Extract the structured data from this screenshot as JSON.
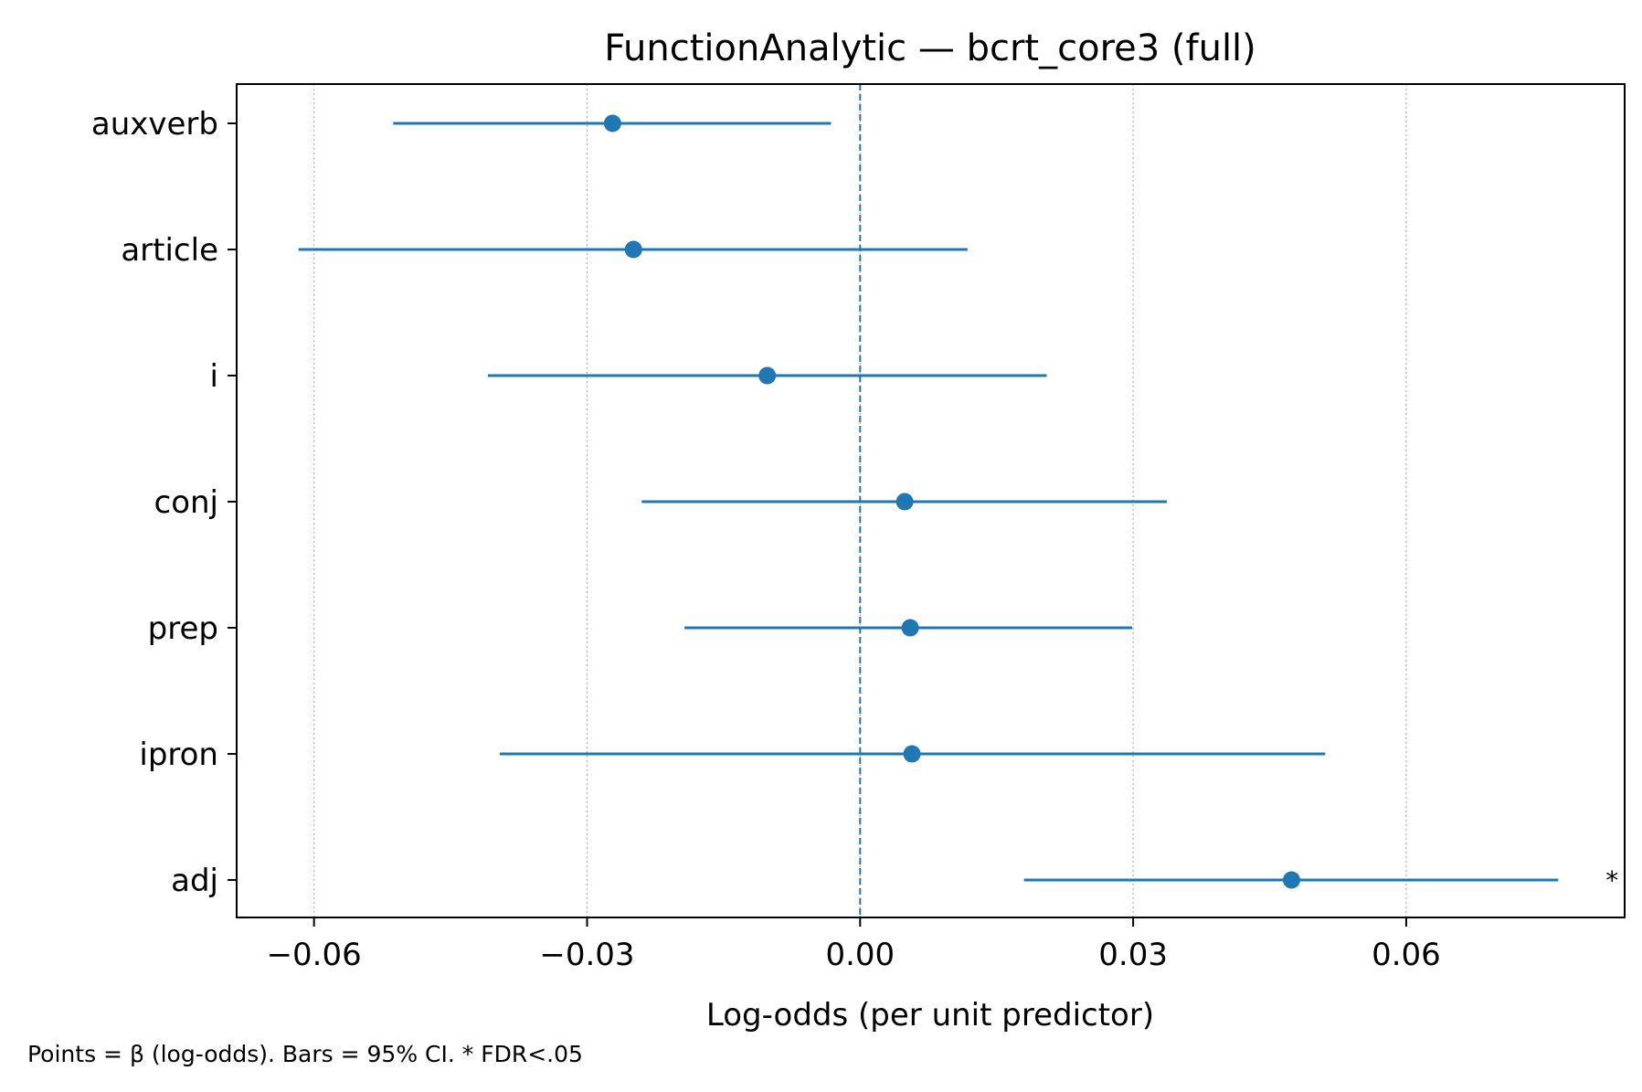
{
  "chart_data": {
    "type": "forest",
    "title": "FunctionAnalytic — bcrt_core3 (full)",
    "xlabel": "Log-odds (per unit predictor)",
    "ylabel": "",
    "caption": "Points = β (log-odds). Bars = 95% CI. * FDR<.05",
    "xlim": [
      -0.0685,
      0.084
    ],
    "xticks": [
      -0.06,
      -0.03,
      0.0,
      0.03,
      0.06
    ],
    "xtick_labels": [
      "−0.06",
      "−0.03",
      "0.00",
      "0.03",
      "0.06"
    ],
    "reference_line": 0.0,
    "grid": "vertical dotted",
    "color": "#1f77b4",
    "predictors": [
      {
        "label": "auxverb",
        "beta": -0.0272,
        "ci_low": -0.0513,
        "ci_high": -0.0032,
        "significant": false
      },
      {
        "label": "article",
        "beta": -0.0249,
        "ci_low": -0.0617,
        "ci_high": 0.0118,
        "significant": false
      },
      {
        "label": "i",
        "beta": -0.0102,
        "ci_low": -0.0409,
        "ci_high": 0.0205,
        "significant": false
      },
      {
        "label": "conj",
        "beta": 0.0049,
        "ci_low": -0.024,
        "ci_high": 0.0337,
        "significant": false
      },
      {
        "label": "prep",
        "beta": 0.0055,
        "ci_low": -0.0193,
        "ci_high": 0.0299,
        "significant": false
      },
      {
        "label": "ipron",
        "beta": 0.0057,
        "ci_low": -0.0396,
        "ci_high": 0.0511,
        "significant": false
      },
      {
        "label": "adj",
        "beta": 0.0474,
        "ci_low": 0.018,
        "ci_high": 0.0767,
        "significant": true
      }
    ],
    "significance_marker": "*"
  }
}
